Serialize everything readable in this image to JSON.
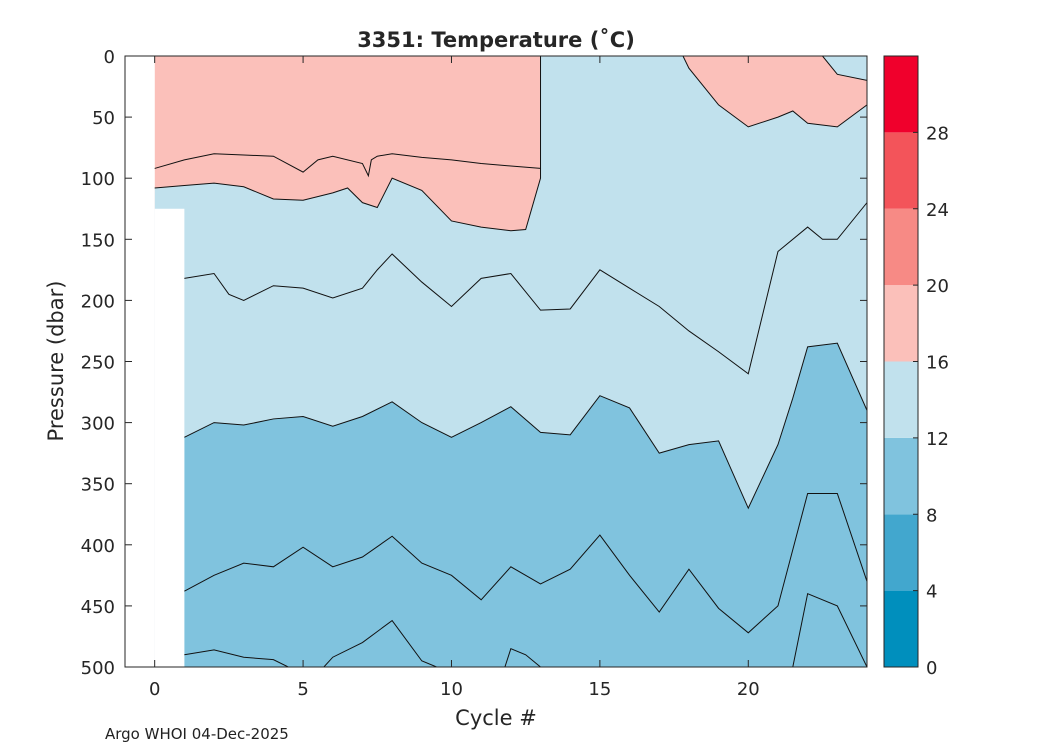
{
  "chart_data": {
    "type": "contour",
    "title": "3351:  Temperature (˚C)",
    "xlabel": "Cycle #",
    "ylabel": "Pressure (dbar)",
    "xlim": [
      -1,
      24
    ],
    "ylim": [
      500,
      0
    ],
    "xticks": [
      0,
      5,
      10,
      15,
      20
    ],
    "yticks": [
      0,
      50,
      100,
      150,
      200,
      250,
      300,
      350,
      400,
      450,
      500
    ],
    "colorbar": {
      "range": [
        0,
        32
      ],
      "ticks": [
        0,
        4,
        8,
        12,
        16,
        20,
        24,
        28
      ],
      "bands": [
        {
          "from": 0,
          "to": 4,
          "color": "#008fbd"
        },
        {
          "from": 4,
          "to": 8,
          "color": "#42a7ce"
        },
        {
          "from": 8,
          "to": 12,
          "color": "#80c3de"
        },
        {
          "from": 12,
          "to": 16,
          "color": "#c1e1ed"
        },
        {
          "from": 16,
          "to": 20,
          "color": "#fbc0ba"
        },
        {
          "from": 20,
          "to": 24,
          "color": "#f78a85"
        },
        {
          "from": 24,
          "to": 28,
          "color": "#f3545a"
        },
        {
          "from": 28,
          "to": 32,
          "color": "#f0002c"
        }
      ]
    },
    "contours": [
      {
        "level": 16,
        "from_band": 3,
        "to_band": 4,
        "segments": [
          [
            [
              0,
              92
            ],
            [
              1,
              85
            ],
            [
              2,
              80
            ],
            [
              3,
              81
            ],
            [
              4,
              82
            ],
            [
              5,
              95
            ],
            [
              5.5,
              85
            ],
            [
              6,
              82
            ],
            [
              7,
              88
            ],
            [
              7.2,
              98
            ],
            [
              7.3,
              85
            ],
            [
              7.5,
              82
            ],
            [
              8,
              80
            ],
            [
              9,
              83
            ],
            [
              10,
              85
            ],
            [
              11,
              88
            ],
            [
              12,
              90
            ],
            [
              13,
              92
            ]
          ],
          [
            [
              0,
              108
            ],
            [
              1,
              106
            ],
            [
              2,
              104
            ],
            [
              3,
              107
            ],
            [
              4,
              117
            ],
            [
              5,
              118
            ],
            [
              6,
              112
            ],
            [
              6.5,
              108
            ],
            [
              7,
              120
            ],
            [
              7.5,
              124
            ],
            [
              8,
              100
            ],
            [
              9,
              110
            ],
            [
              10,
              135
            ],
            [
              11,
              140
            ],
            [
              12,
              143
            ],
            [
              12.5,
              142
            ],
            [
              13,
              100
            ],
            [
              13,
              0
            ]
          ],
          [
            [
              17.8,
              0
            ],
            [
              18,
              10
            ],
            [
              19,
              40
            ],
            [
              20,
              58
            ],
            [
              21,
              50
            ],
            [
              21.5,
              45
            ],
            [
              22,
              55
            ],
            [
              23,
              58
            ],
            [
              24,
              40
            ]
          ],
          [
            [
              22.5,
              0
            ],
            [
              23,
              15
            ],
            [
              24,
              20
            ]
          ]
        ]
      },
      {
        "level": 12,
        "from_band": 2,
        "to_band": 3,
        "segments": [
          [
            [
              1,
              182
            ],
            [
              2,
              178
            ],
            [
              2.5,
              195
            ],
            [
              3,
              200
            ],
            [
              4,
              188
            ],
            [
              5,
              190
            ],
            [
              6,
              198
            ],
            [
              7,
              190
            ],
            [
              7.5,
              175
            ],
            [
              8,
              162
            ],
            [
              9,
              185
            ],
            [
              10,
              205
            ],
            [
              11,
              182
            ],
            [
              12,
              178
            ],
            [
              13,
              208
            ],
            [
              14,
              207
            ],
            [
              15,
              175
            ],
            [
              16,
              190
            ],
            [
              17,
              205
            ],
            [
              18,
              225
            ],
            [
              19,
              242
            ],
            [
              20,
              260
            ],
            [
              21,
              160
            ],
            [
              22,
              140
            ],
            [
              22.5,
              150
            ],
            [
              23,
              150
            ],
            [
              24,
              120
            ]
          ],
          [
            [
              1,
              312
            ],
            [
              2,
              300
            ],
            [
              3,
              302
            ],
            [
              4,
              297
            ],
            [
              5,
              295
            ],
            [
              6,
              303
            ],
            [
              7,
              295
            ],
            [
              8,
              283
            ],
            [
              9,
              300
            ],
            [
              10,
              312
            ],
            [
              11,
              300
            ],
            [
              12,
              287
            ],
            [
              13,
              308
            ],
            [
              14,
              310
            ],
            [
              15,
              278
            ],
            [
              16,
              288
            ],
            [
              17,
              325
            ],
            [
              18,
              318
            ],
            [
              19,
              315
            ],
            [
              20,
              370
            ],
            [
              21,
              318
            ],
            [
              21.5,
              280
            ],
            [
              22,
              238
            ],
            [
              23,
              235
            ],
            [
              24,
              290
            ]
          ]
        ]
      },
      {
        "level": 8,
        "from_band": 1,
        "to_band": 2,
        "segments": [
          [
            [
              1,
              438
            ],
            [
              2,
              425
            ],
            [
              3,
              415
            ],
            [
              4,
              418
            ],
            [
              5,
              402
            ],
            [
              6,
              418
            ],
            [
              7,
              410
            ],
            [
              8,
              393
            ],
            [
              9,
              415
            ],
            [
              10,
              425
            ],
            [
              11,
              445
            ],
            [
              12,
              418
            ],
            [
              13,
              432
            ],
            [
              14,
              420
            ],
            [
              15,
              392
            ],
            [
              16,
              425
            ],
            [
              17,
              455
            ],
            [
              18,
              420
            ],
            [
              19,
              452
            ],
            [
              20,
              472
            ],
            [
              21,
              450
            ],
            [
              22,
              358
            ],
            [
              23,
              358
            ],
            [
              24,
              430
            ]
          ]
        ]
      },
      {
        "level": 4,
        "from_band": 0,
        "to_band": 1,
        "segments": [
          [
            [
              1,
              490
            ],
            [
              2,
              486
            ],
            [
              3,
              492
            ],
            [
              4,
              494
            ],
            [
              4.5,
              500
            ]
          ],
          [
            [
              5.7,
              500
            ],
            [
              6,
              492
            ],
            [
              7,
              480
            ],
            [
              8,
              462
            ],
            [
              9,
              495
            ],
            [
              9.5,
              500
            ]
          ],
          [
            [
              11.8,
              500
            ],
            [
              12,
              485
            ],
            [
              12.5,
              490
            ],
            [
              13,
              500
            ]
          ],
          [
            [
              21.5,
              500
            ],
            [
              22,
              440
            ],
            [
              23,
              450
            ],
            [
              24,
              500
            ]
          ]
        ]
      }
    ],
    "fill_lower": [
      {
        "color_band": 0,
        "x": [
          1,
          24
        ],
        "y": 500
      }
    ],
    "no_data_region": {
      "x": [
        -1,
        1
      ],
      "y_top": 125
    }
  },
  "footer": "Argo WHOI 04-Dec-2025"
}
